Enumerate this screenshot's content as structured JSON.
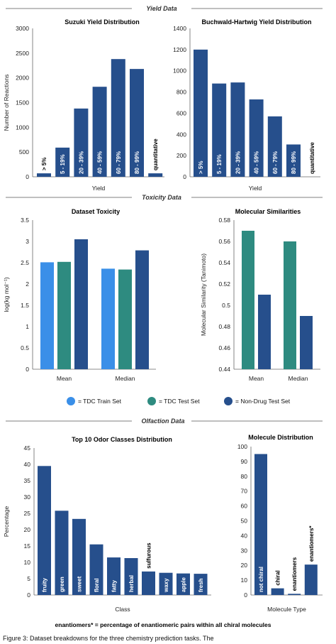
{
  "sections": [
    "Yield Data",
    "Toxicity Data",
    "Olfaction Data"
  ],
  "colors": {
    "dark_blue": "#264f8c",
    "light_blue": "#3a8fe8",
    "teal": "#2e8b80"
  },
  "legend": [
    {
      "label": "= TDC Train Set",
      "color": "#3a8fe8"
    },
    {
      "label": "= TDC Test Set",
      "color": "#2e8b80"
    },
    {
      "label": "= Non-Drug Test Set",
      "color": "#264f8c"
    }
  ],
  "caption": "enantiomers* = percentage of enantiomeric pairs within all chiral molecules",
  "footer_text": "Figure 3: Dataset breakdowns for the three chemistry prediction tasks. The",
  "chart_data": [
    {
      "id": "suzuki",
      "type": "bar",
      "title": "Suzuki Yield Distribution",
      "xlabel": "Yield",
      "ylabel": "Number of Reactions",
      "ylim": [
        0,
        3000
      ],
      "yticks": [
        "0",
        "500",
        "1000",
        "1500",
        "2000",
        "2500",
        "3000"
      ],
      "categories": [
        "> 5%",
        "5 - 19%",
        "20 - 39%",
        "40 - 59%",
        "60 - 79%",
        "80 - 99%",
        "quantitative"
      ],
      "values": [
        70,
        590,
        1380,
        1820,
        2380,
        2180,
        70
      ],
      "grid": false
    },
    {
      "id": "buchwald",
      "type": "bar",
      "title": "Buchwald-Hartwig Yield Distribution",
      "xlabel": "Yield",
      "ylabel": "",
      "ylim": [
        0,
        1400
      ],
      "yticks": [
        "0",
        "200",
        "400",
        "600",
        "800",
        "1000",
        "1200",
        "1400"
      ],
      "categories": [
        "> 5%",
        "5 - 19%",
        "20 - 39%",
        "40 - 59%",
        "60 - 79%",
        "80 - 99%",
        "quantitative"
      ],
      "values": [
        1200,
        880,
        890,
        730,
        570,
        305,
        0
      ],
      "grid": false
    },
    {
      "id": "toxicity",
      "type": "bar",
      "title": "Dataset Toxicity",
      "xlabel": "",
      "ylabel": "log(kg mol⁻¹)",
      "ylim": [
        0,
        3.5
      ],
      "yticks": [
        "0",
        "0.5",
        "1",
        "1.5",
        "2",
        "2.5",
        "3",
        "3.5"
      ],
      "categories": [
        "Mean",
        "Median"
      ],
      "series": [
        {
          "name": "TDC Train Set",
          "values": [
            2.51,
            2.36
          ]
        },
        {
          "name": "TDC Test Set",
          "values": [
            2.52,
            2.34
          ]
        },
        {
          "name": "Non-Drug Test Set",
          "values": [
            3.05,
            2.79
          ]
        }
      ],
      "grid": false
    },
    {
      "id": "similarity",
      "type": "bar",
      "title": "Molecular Similarities",
      "xlabel": "",
      "ylabel": "Molecular Similarity (Tanimoto)",
      "ylim": [
        0.44,
        0.58
      ],
      "yticks": [
        "0.44",
        "0.46",
        "0.48",
        "0.5",
        "0.52",
        "0.54",
        "0.56",
        "0.58"
      ],
      "categories": [
        "Mean",
        "Median"
      ],
      "series": [
        {
          "name": "TDC Test Set",
          "values": [
            0.57,
            0.56
          ]
        },
        {
          "name": "Non-Drug Test Set",
          "values": [
            0.51,
            0.49
          ]
        }
      ],
      "grid": false
    },
    {
      "id": "odor",
      "type": "bar",
      "title": "Top 10 Odor Classes Distribution",
      "xlabel": "Class",
      "ylabel": "Percentage",
      "ylim": [
        0,
        45
      ],
      "yticks": [
        "0",
        "5",
        "10",
        "15",
        "20",
        "25",
        "30",
        "35",
        "40",
        "45"
      ],
      "categories": [
        "fruity",
        "green",
        "sweet",
        "floral",
        "fatty",
        "herbal",
        "sulfurous",
        "waxy",
        "apple",
        "fresh"
      ],
      "values": [
        39.5,
        25.8,
        23.3,
        15.5,
        11.5,
        11.3,
        7.2,
        6.8,
        6.6,
        6.5
      ],
      "grid": false
    },
    {
      "id": "molecule",
      "type": "bar",
      "title": "Molecule Distribution",
      "xlabel": "Molecule Type",
      "ylabel": "",
      "ylim": [
        0,
        100
      ],
      "yticks": [
        "0",
        "10",
        "20",
        "30",
        "40",
        "50",
        "60",
        "70",
        "80",
        "90",
        "100"
      ],
      "categories": [
        "not chiral",
        "chiral",
        "enantiomers",
        "enantiomers*"
      ],
      "values": [
        95,
        4.5,
        0.8,
        20.5
      ],
      "grid": false
    }
  ]
}
